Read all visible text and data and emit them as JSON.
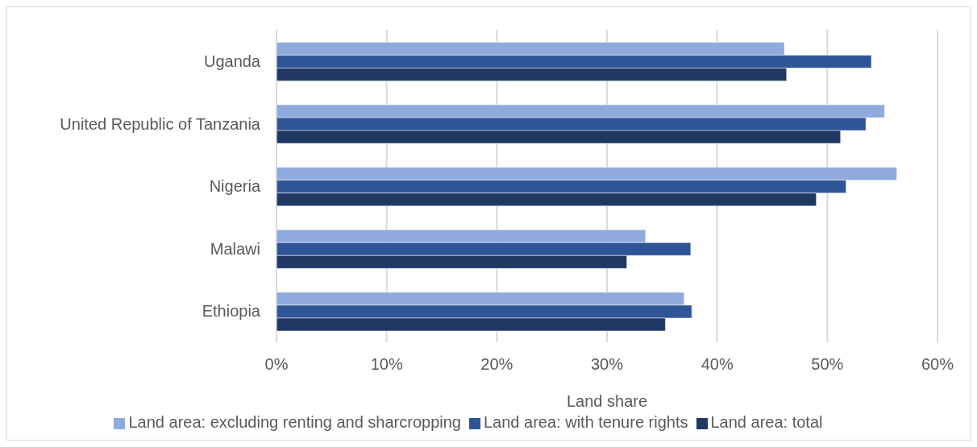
{
  "chart_data": {
    "type": "bar",
    "orientation": "horizontal",
    "xlabel": "Land share",
    "categories": [
      "Uganda",
      "United Republic of Tanzania",
      "Nigeria",
      "Malawi",
      "Ethiopia"
    ],
    "series": [
      {
        "name": "Land area: excluding renting and sharcropping",
        "color": "#8faadc",
        "values": [
          46.1,
          55.2,
          56.3,
          33.5,
          37.0
        ]
      },
      {
        "name": "Land area: with tenure rights",
        "color": "#2f5597",
        "values": [
          54.0,
          53.5,
          51.7,
          37.6,
          37.7
        ]
      },
      {
        "name": "Land area: total",
        "color": "#203864",
        "values": [
          46.3,
          51.2,
          49.0,
          31.8,
          35.3
        ]
      }
    ],
    "xlim": [
      0,
      60
    ],
    "xticks": [
      {
        "value": 0,
        "label": "0%"
      },
      {
        "value": 10,
        "label": "10%"
      },
      {
        "value": 20,
        "label": "20%"
      },
      {
        "value": 30,
        "label": "30%"
      },
      {
        "value": 40,
        "label": "40%"
      },
      {
        "value": 50,
        "label": "50%"
      },
      {
        "value": 60,
        "label": "60%"
      }
    ],
    "grid": "x",
    "legend": "bottom"
  }
}
